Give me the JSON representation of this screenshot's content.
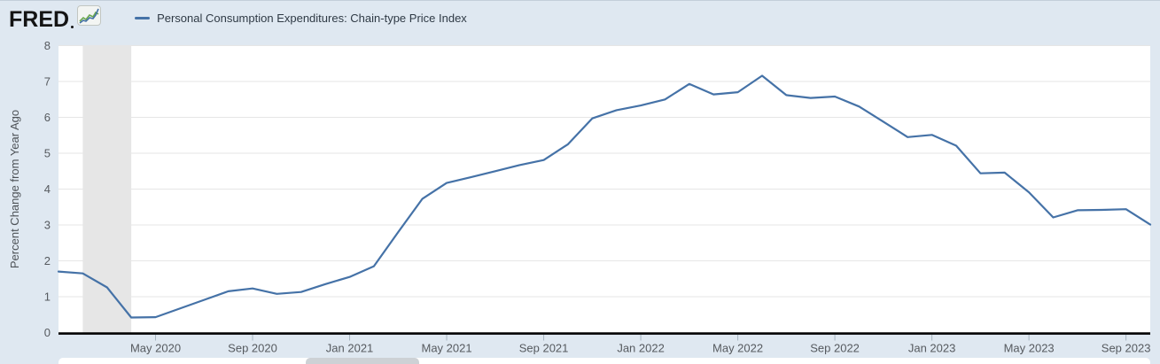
{
  "header": {
    "logo_text": "FRED",
    "legend": {
      "label": "Personal Consumption Expenditures: Chain-type Price Index"
    }
  },
  "colors": {
    "background": "#dfe8f1",
    "plot_background": "#ffffff",
    "series_line": "#4572a7",
    "gridline": "#e6e6e6",
    "recession_band": "#e6e6e6",
    "x_axis_line": "#000000",
    "tick_mark": "#a6b4c0",
    "tick_label": "#565a5f",
    "axis_title": "#4d5257",
    "legend_text": "#2f3a45",
    "scrollbar_track": "#ffffff",
    "scrollbar_thumb": "#cdd1d5"
  },
  "chart_data": {
    "type": "line",
    "title": "Personal Consumption Expenditures: Chain-type Price Index",
    "ylabel": "Percent Change from Year Ago",
    "xlabel": "",
    "ylim": [
      0,
      8
    ],
    "y_ticks": [
      0,
      1,
      2,
      3,
      4,
      5,
      6,
      7,
      8
    ],
    "grid": true,
    "legend_position": "top-left",
    "frequency": "monthly",
    "x": [
      "2020-01",
      "2020-02",
      "2020-03",
      "2020-04",
      "2020-05",
      "2020-06",
      "2020-07",
      "2020-08",
      "2020-09",
      "2020-10",
      "2020-11",
      "2020-12",
      "2021-01",
      "2021-02",
      "2021-03",
      "2021-04",
      "2021-05",
      "2021-06",
      "2021-07",
      "2021-08",
      "2021-09",
      "2021-10",
      "2021-11",
      "2021-12",
      "2022-01",
      "2022-02",
      "2022-03",
      "2022-04",
      "2022-05",
      "2022-06",
      "2022-07",
      "2022-08",
      "2022-09",
      "2022-10",
      "2022-11",
      "2022-12",
      "2023-01",
      "2023-02",
      "2023-03",
      "2023-04",
      "2023-05",
      "2023-06",
      "2023-07",
      "2023-08",
      "2023-09",
      "2023-10"
    ],
    "x_tick_labels": [
      "May 2020",
      "Sep 2020",
      "Jan 2021",
      "May 2021",
      "Sep 2021",
      "Jan 2022",
      "May 2022",
      "Sep 2022",
      "Jan 2023",
      "May 2023",
      "Sep 2023"
    ],
    "x_tick_month_indices": [
      4,
      8,
      12,
      16,
      20,
      24,
      28,
      32,
      36,
      40,
      44
    ],
    "recession_band": {
      "from": "2020-02",
      "to": "2020-04",
      "indices": [
        1,
        3
      ]
    },
    "series": [
      {
        "name": "Personal Consumption Expenditures: Chain-type Price Index",
        "color": "#4572a7",
        "values": [
          1.7,
          1.65,
          1.26,
          0.42,
          0.43,
          0.67,
          0.91,
          1.15,
          1.23,
          1.08,
          1.13,
          1.35,
          1.55,
          1.85,
          2.8,
          3.73,
          4.17,
          4.33,
          4.5,
          4.67,
          4.81,
          5.25,
          5.97,
          6.2,
          6.33,
          6.5,
          6.93,
          6.64,
          6.7,
          7.16,
          6.62,
          6.54,
          6.58,
          6.3,
          5.88,
          5.45,
          5.51,
          5.21,
          4.44,
          4.46,
          3.91,
          3.21,
          3.41,
          3.42,
          3.44,
          3.01
        ]
      }
    ]
  }
}
